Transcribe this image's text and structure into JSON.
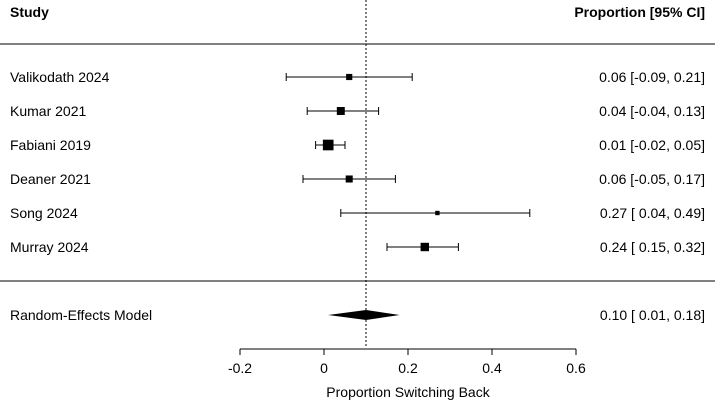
{
  "chart_data": {
    "type": "forest",
    "headers": {
      "left": "Study",
      "right": "Proportion [95% CI]"
    },
    "studies": [
      {
        "name": "Valikodath 2024",
        "estimate": 0.06,
        "lower": -0.09,
        "upper": 0.21,
        "ci_text": "0.06 [-0.09, 0.21]",
        "weight": 0.35
      },
      {
        "name": "Kumar 2021",
        "estimate": 0.04,
        "lower": -0.04,
        "upper": 0.13,
        "ci_text": "0.04 [-0.04, 0.13]",
        "weight": 0.55
      },
      {
        "name": "Fabiani 2019",
        "estimate": 0.01,
        "lower": -0.02,
        "upper": 0.05,
        "ci_text": "0.01 [-0.02, 0.05]",
        "weight": 0.85
      },
      {
        "name": "Deaner 2021",
        "estimate": 0.06,
        "lower": -0.05,
        "upper": 0.17,
        "ci_text": "0.06 [-0.05, 0.17]",
        "weight": 0.45
      },
      {
        "name": "Song 2024",
        "estimate": 0.27,
        "lower": 0.04,
        "upper": 0.49,
        "ci_text": "0.27 [ 0.04, 0.49]",
        "weight": 0.15
      },
      {
        "name": "Murray 2024",
        "estimate": 0.24,
        "lower": 0.15,
        "upper": 0.32,
        "ci_text": "0.24 [ 0.15, 0.32]",
        "weight": 0.6
      }
    ],
    "summary": {
      "name": "Random-Effects Model",
      "estimate": 0.1,
      "lower": 0.01,
      "upper": 0.18,
      "ci_text": "0.10 [ 0.01, 0.18]"
    },
    "reference_line": 0.1,
    "xlabel": "Proportion Switching Back",
    "xlim": [
      -0.2,
      0.6
    ],
    "xticks": [
      -0.2,
      0,
      0.2,
      0.4,
      0.6
    ],
    "xtick_labels": [
      "-0.2",
      "0",
      "0.2",
      "0.4",
      "0.6"
    ]
  }
}
